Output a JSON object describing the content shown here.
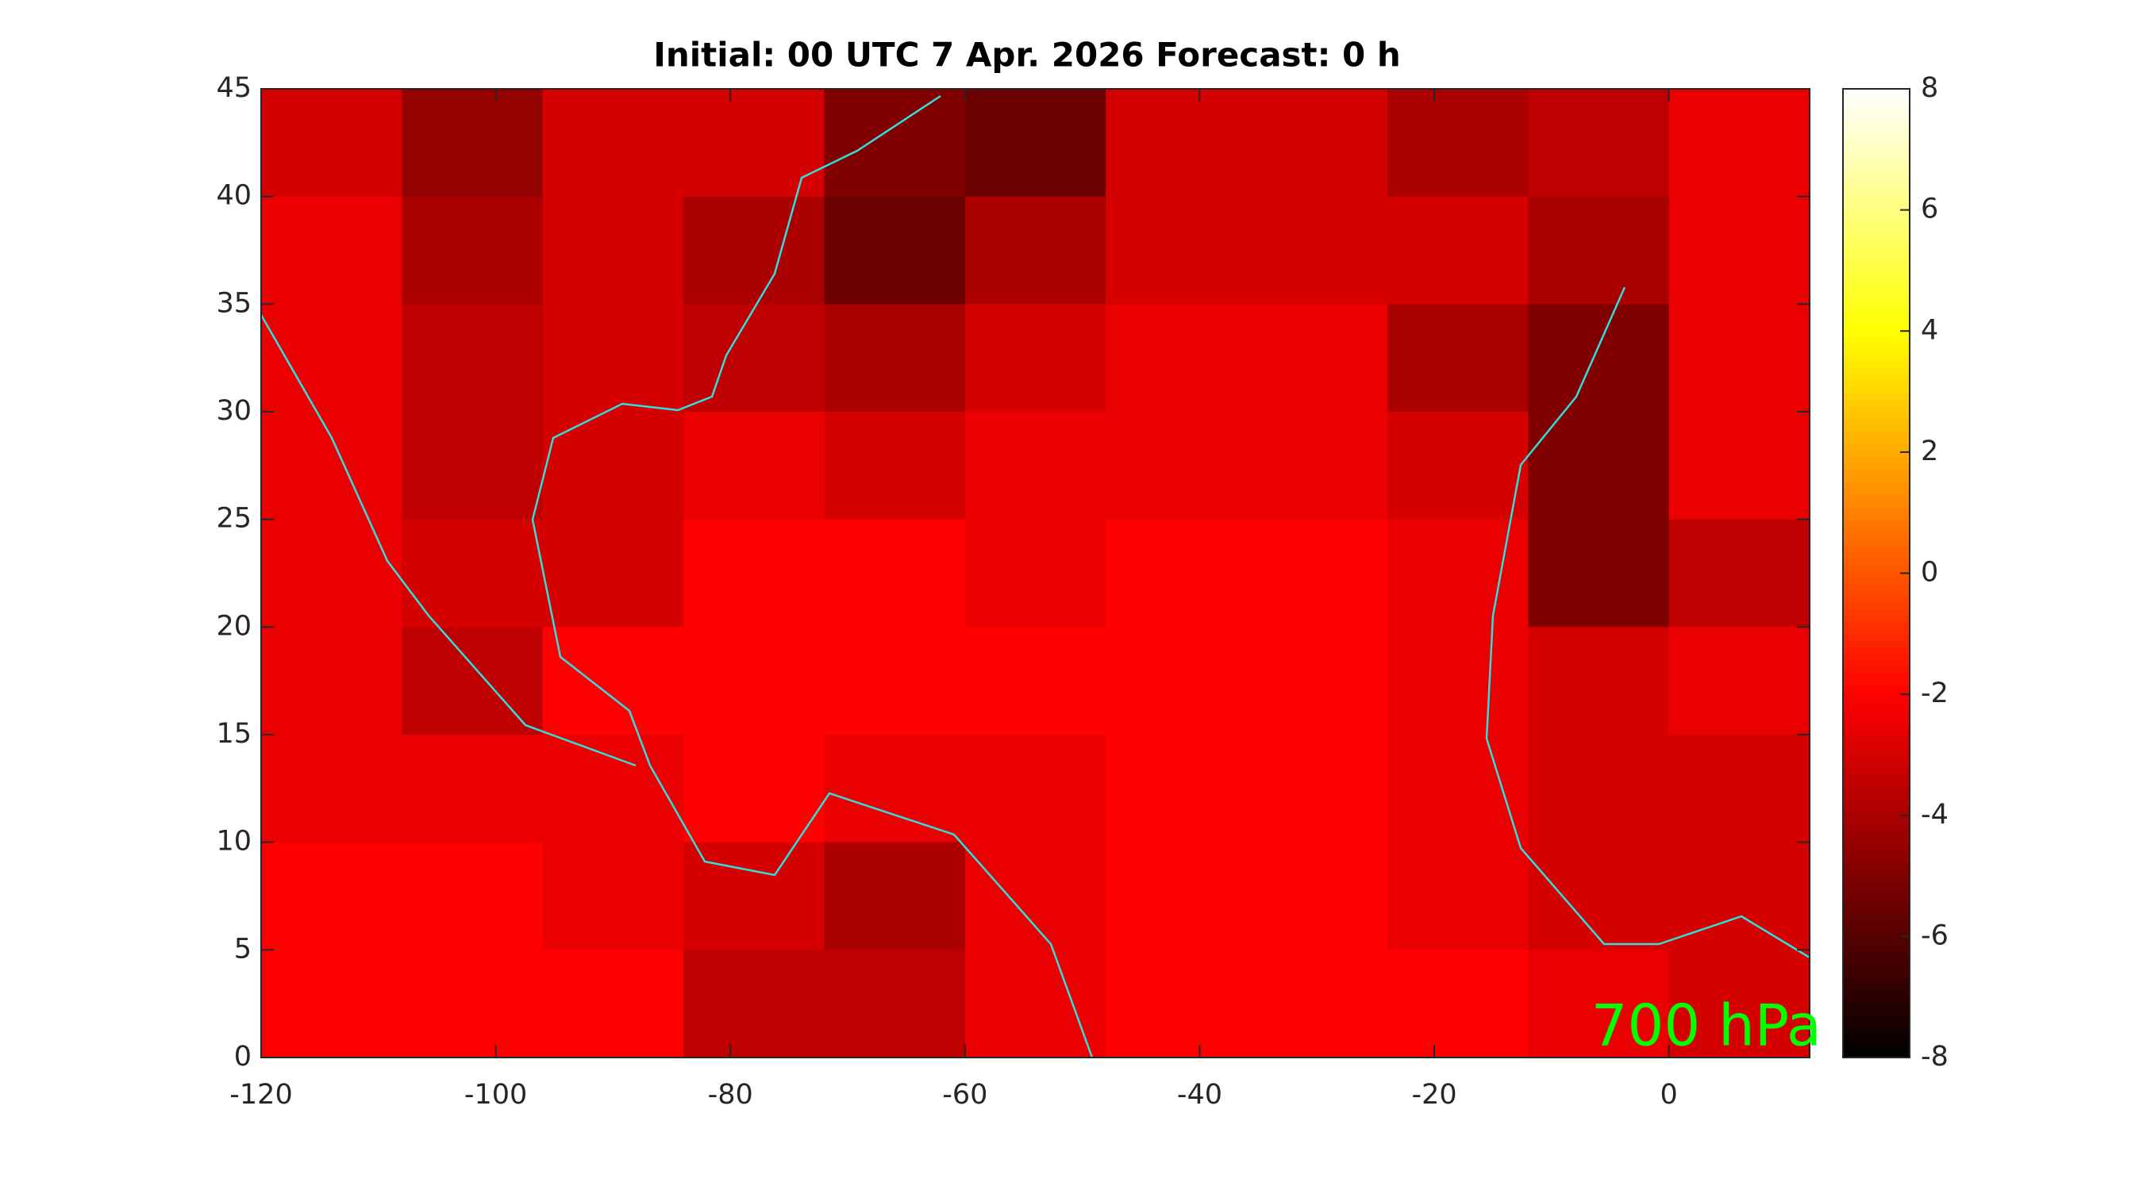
{
  "chart_data": {
    "type": "heatmap",
    "title": "Initial: 00 UTC 7 Apr. 2026 Forecast: 0 h",
    "annotation": "700 hPa",
    "colormap": "hot",
    "xlim": [
      -120,
      12
    ],
    "ylim": [
      0,
      45
    ],
    "xticks": [
      -120,
      -100,
      -80,
      -60,
      -40,
      -20,
      0
    ],
    "yticks": [
      0,
      5,
      10,
      15,
      20,
      25,
      30,
      35,
      40,
      45
    ],
    "clim": [
      -8,
      8
    ],
    "cticks": [
      -8,
      -6,
      -4,
      -2,
      0,
      2,
      4,
      6,
      8
    ],
    "lon_edges": [
      -120,
      -108,
      -96,
      -84,
      -72,
      -60,
      -48,
      -36,
      -24,
      -12,
      0,
      12
    ],
    "lat_edges": [
      45,
      40,
      35,
      30,
      25,
      20,
      15,
      10,
      5,
      0
    ],
    "values": [
      [
        -3,
        -4.5,
        -3,
        -3,
        -5,
        -5.5,
        -3,
        -3,
        -4,
        -3.5,
        -2.5
      ],
      [
        -2.5,
        -4,
        -3,
        -4,
        -5.5,
        -4,
        -3,
        -3,
        -3,
        -4,
        -2.5
      ],
      [
        -2.5,
        -3.5,
        -3,
        -3.5,
        -4,
        -3,
        -2.5,
        -2.5,
        -4,
        -5,
        -2.5
      ],
      [
        -2.5,
        -3.5,
        -3,
        -2.5,
        -3,
        -2.5,
        -2.5,
        -2.5,
        -3,
        -5,
        -2.5
      ],
      [
        -2.5,
        -3,
        -3,
        -2,
        -2,
        -2.5,
        -2,
        -2,
        -2.5,
        -5,
        -3.5
      ],
      [
        -2.5,
        -3.5,
        -2,
        -2,
        -2,
        -2,
        -2,
        -2,
        -2.5,
        -3,
        -2.5
      ],
      [
        -2.5,
        -2.5,
        -2.5,
        -2,
        -2.5,
        -2.5,
        -2,
        -2,
        -2.5,
        -3,
        -3
      ],
      [
        -2,
        -2,
        -2.5,
        -3,
        -4,
        -2.5,
        -2,
        -2,
        -2.5,
        -3,
        -3
      ],
      [
        -2,
        -2,
        -2,
        -3.5,
        -3.5,
        -2.5,
        -2,
        -2,
        -2,
        -2.5,
        -3
      ]
    ]
  }
}
